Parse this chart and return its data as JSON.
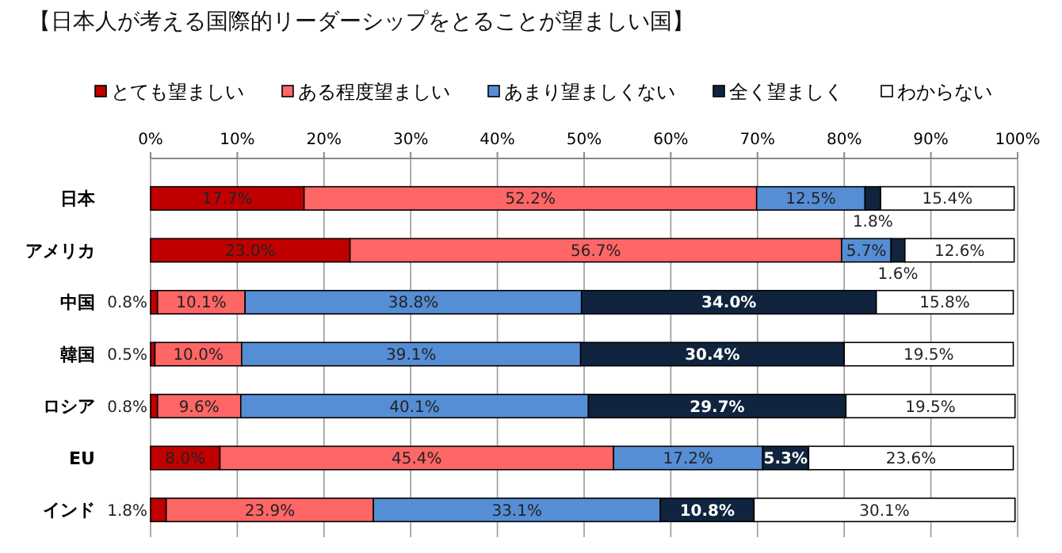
{
  "chart_data": {
    "type": "bar",
    "orientation": "horizontal",
    "stacked": true,
    "title": "【日本人が考える国際的リーダーシップをとることが望ましい国】",
    "categories": [
      "日本",
      "アメリカ",
      "中国",
      "韓国",
      "ロシア",
      "EU",
      "インド"
    ],
    "series": [
      {
        "name": "とても望ましい",
        "color": "#c00000",
        "values": [
          17.7,
          23.0,
          0.8,
          0.5,
          0.8,
          8.0,
          1.8
        ],
        "value_labels": [
          "17.7%",
          "23.0%",
          "0.8%",
          "0.5%",
          "0.8%",
          "8.0%",
          "1.8%"
        ]
      },
      {
        "name": "ある程度望ましい",
        "color": "#ff6666",
        "values": [
          52.2,
          56.7,
          10.1,
          10.0,
          9.6,
          45.4,
          23.9
        ],
        "value_labels": [
          "52.2%",
          "56.7%",
          "10.1%",
          "10.0%",
          "9.6%",
          "45.4%",
          "23.9%"
        ]
      },
      {
        "name": "あまり望ましくない",
        "color": "#558ed5",
        "values": [
          12.5,
          5.7,
          38.8,
          39.1,
          40.1,
          17.2,
          33.1
        ],
        "value_labels": [
          "12.5%",
          "5.7%",
          "38.8%",
          "39.1%",
          "40.1%",
          "17.2%",
          "33.1%"
        ]
      },
      {
        "name": "全く望ましく",
        "color": "#10243f",
        "values": [
          1.8,
          1.6,
          34.0,
          30.4,
          29.7,
          5.3,
          10.8
        ],
        "value_labels": [
          "1.8%",
          "1.6%",
          "34.0%",
          "30.4%",
          "29.7%",
          "5.3%",
          "10.8%"
        ]
      },
      {
        "name": "わからない",
        "color": "#ffffff",
        "values": [
          15.4,
          12.6,
          15.8,
          19.5,
          19.5,
          23.6,
          30.1
        ],
        "value_labels": [
          "15.4%",
          "12.6%",
          "15.8%",
          "19.5%",
          "19.5%",
          "23.6%",
          "30.1%"
        ]
      }
    ],
    "xlim": [
      0,
      100
    ],
    "xticks": [
      {
        "value": 0,
        "label": "0%"
      },
      {
        "value": 10,
        "label": "10%"
      },
      {
        "value": 20,
        "label": "20%"
      },
      {
        "value": 30,
        "label": "30%"
      },
      {
        "value": 40,
        "label": "40%"
      },
      {
        "value": 50,
        "label": "50%"
      },
      {
        "value": 60,
        "label": "60%"
      },
      {
        "value": 70,
        "label": "70%"
      },
      {
        "value": 80,
        "label": "80%"
      },
      {
        "value": 90,
        "label": "90%"
      },
      {
        "value": 100,
        "label": "100%"
      }
    ],
    "grid": "x",
    "legend": "top"
  }
}
